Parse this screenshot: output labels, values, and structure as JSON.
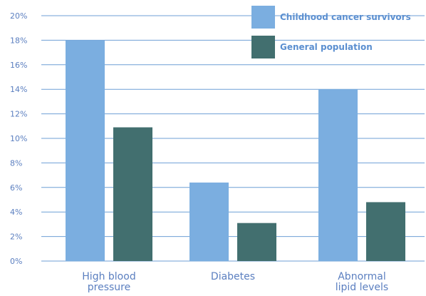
{
  "chart_data": {
    "type": "bar",
    "categories": [
      [
        "High blood",
        "pressure"
      ],
      [
        "Diabetes"
      ],
      [
        "Abnormal",
        "lipid levels"
      ]
    ],
    "series": [
      {
        "name": "Childhood cancer survivors",
        "values": [
          18,
          6.4,
          14
        ],
        "color": "#7baee0"
      },
      {
        "name": "General population",
        "values": [
          10.9,
          3.1,
          4.8
        ],
        "color": "#426f6f"
      }
    ],
    "ylim": [
      0,
      20
    ],
    "yticks": [
      0,
      2,
      4,
      6,
      8,
      10,
      12,
      14,
      16,
      18,
      20
    ],
    "ytick_suffix": "%",
    "grid": true,
    "gridline_color": "#6f9fd6",
    "legend_position": "top-right"
  }
}
